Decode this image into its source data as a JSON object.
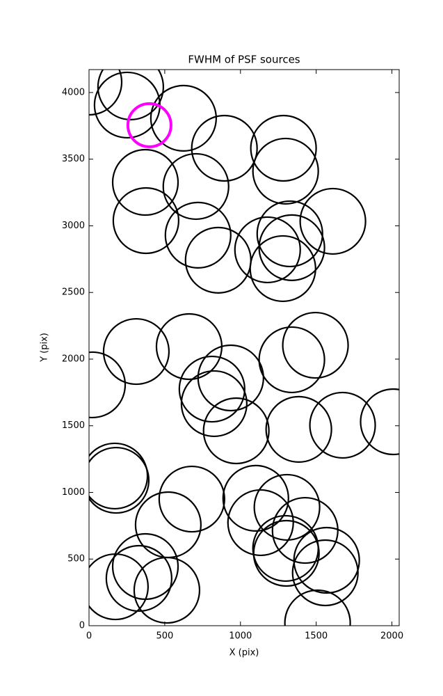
{
  "chart_data": {
    "type": "scatter",
    "title": "FWHM of PSF sources",
    "x_label": "X (pix)",
    "y_label": "Y (pix)",
    "xlim": [
      0,
      2048
    ],
    "ylim": [
      0,
      4172
    ],
    "xticks": [
      0,
      500,
      1000,
      1500,
      2000
    ],
    "yticks": [
      0,
      500,
      1000,
      1500,
      2000,
      2500,
      3000,
      3500,
      4000
    ],
    "series": [
      {
        "color": "#000000",
        "x": [
          0,
          275,
          252,
          624,
          894,
          1284,
          1298,
          372,
          706,
          1610,
          376,
          720,
          1326,
          1339,
          1179,
          853,
          1280,
          312,
          661,
          1495,
          1339,
          23,
          936,
          812,
          826,
          972,
          1385,
          1674,
          2009,
          170,
          179,
          679,
          1101,
          523,
          1133,
          1307,
          1427,
          1298,
          1303,
          1569,
          1560,
          372,
          330,
          174,
          514,
          1509
        ],
        "values": [
          4078,
          4042,
          3906,
          3807,
          3582,
          3582,
          3410,
          3326,
          3295,
          3034,
          3039,
          2930,
          2940,
          2836,
          2820,
          2742,
          2679,
          2057,
          2094,
          2104,
          1995,
          1807,
          1859,
          1775,
          1666,
          1462,
          1473,
          1504,
          1530,
          1123,
          1091,
          950,
          956,
          757,
          773,
          888,
          715,
          580,
          543,
          491,
          397,
          444,
          355,
          292,
          266,
          21
        ]
      },
      {
        "color": "#ff00ff",
        "x": [
          399
        ],
        "values": [
          3755
        ]
      }
    ]
  }
}
